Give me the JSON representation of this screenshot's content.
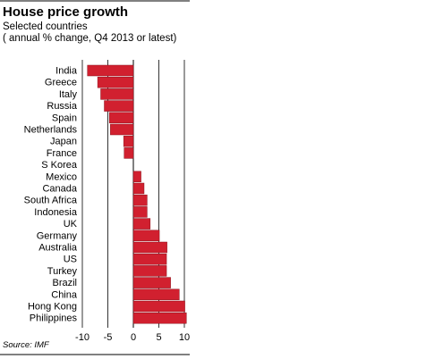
{
  "chart_data": {
    "type": "bar",
    "orientation": "horizontal",
    "title": "House price growth",
    "subtitle_lines": [
      "Selected countries",
      "( annual % change, Q4 2013 or latest)"
    ],
    "source": "Source: IMF",
    "categories": [
      "India",
      "Greece",
      "Italy",
      "Russia",
      "Spain",
      "Netherlands",
      "Japan",
      "France",
      "S Korea",
      "Mexico",
      "Canada",
      "South Africa",
      "Indonesia",
      "UK",
      "Germany",
      "Australia",
      "US",
      "Turkey",
      "Brazil",
      "China",
      "Hong Kong",
      "Philippines"
    ],
    "values": [
      -9.0,
      -7.0,
      -6.4,
      -5.7,
      -4.7,
      -4.5,
      -1.9,
      -1.8,
      0.0,
      1.5,
      2.1,
      2.7,
      2.7,
      3.3,
      5.1,
      6.6,
      6.5,
      6.5,
      7.3,
      9.0,
      10.1,
      10.4
    ],
    "xticks": [
      -10,
      -5,
      0,
      5,
      10
    ],
    "xlim": [
      -11,
      11
    ],
    "grid": true,
    "colors": {
      "bar": "#d1202f",
      "bar_edge": "#8a111b",
      "grid": "#000000",
      "rule": "#000000"
    }
  }
}
